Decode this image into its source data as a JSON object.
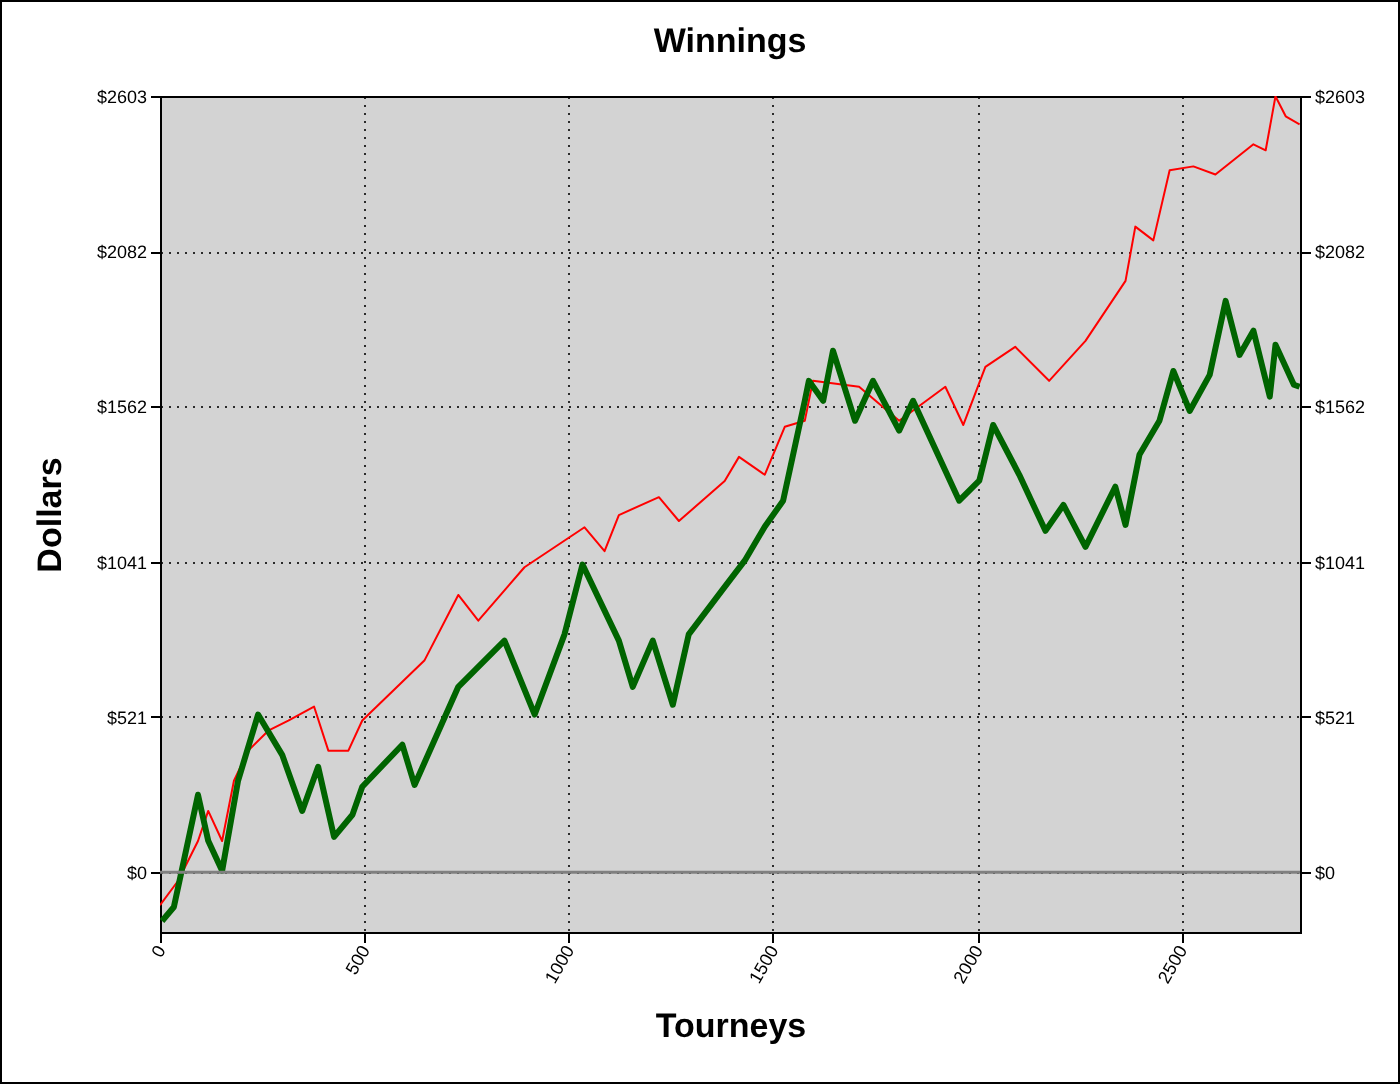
{
  "chart_data": {
    "type": "line",
    "title": "Winnings",
    "xlabel": "Tourneys",
    "ylabel": "Dollars",
    "xlim": [
      0,
      2790
    ],
    "xticks": [
      0,
      500,
      1000,
      1500,
      2000,
      2500
    ],
    "ylim": [
      -200,
      2603
    ],
    "yticks": [
      {
        "value": 0,
        "label": "$0"
      },
      {
        "value": 521,
        "label": "$521"
      },
      {
        "value": 1041,
        "label": "$1041"
      },
      {
        "value": 1562,
        "label": "$1562"
      },
      {
        "value": 2082,
        "label": "$2082"
      },
      {
        "value": 2603,
        "label": "$2603"
      }
    ],
    "y2lim": [
      -200,
      2603
    ],
    "y2ticks": [
      {
        "value": 0,
        "label": "$0"
      },
      {
        "value": 521,
        "label": "$521"
      },
      {
        "value": 1041,
        "label": "$1041"
      },
      {
        "value": 1562,
        "label": "$1562"
      },
      {
        "value": 2082,
        "label": "$2082"
      },
      {
        "value": 2603,
        "label": "$2603"
      }
    ],
    "grid": true,
    "ref_lines": [
      {
        "axis": "y",
        "value": 0,
        "label": null,
        "color": "#808080"
      }
    ],
    "series": [
      {
        "color": "#ff0000",
        "x": [
          0,
          44,
          93,
          118,
          152,
          181,
          216,
          265,
          314,
          377,
          412,
          461,
          495,
          647,
          730,
          779,
          892,
          1039,
          1088,
          1123,
          1221,
          1270,
          1382,
          1417,
          1480,
          1529,
          1578,
          1598,
          1711,
          1809,
          1922,
          1966,
          2020,
          2093,
          2176,
          2265,
          2363,
          2387,
          2431,
          2471,
          2529,
          2583,
          2676,
          2706,
          2730,
          2755,
          2789
        ],
        "values": [
          -110,
          -29,
          105,
          206,
          105,
          307,
          408,
          475,
          509,
          556,
          408,
          408,
          509,
          710,
          930,
          844,
          1023,
          1157,
          1077,
          1198,
          1258,
          1178,
          1312,
          1393,
          1333,
          1494,
          1514,
          1648,
          1628,
          1514,
          1628,
          1500,
          1695,
          1762,
          1648,
          1782,
          1983,
          2165,
          2119,
          2354,
          2367,
          2340,
          2441,
          2421,
          2602,
          2535,
          2508
        ]
      },
      {
        "color": "#006400",
        "x": [
          5,
          34,
          93,
          118,
          152,
          191,
          240,
          299,
          348,
          387,
          426,
          471,
          495,
          593,
          623,
          730,
          843,
          917,
          990,
          1034,
          1123,
          1157,
          1206,
          1255,
          1294,
          1382,
          1431,
          1480,
          1525,
          1578,
          1588,
          1623,
          1647,
          1701,
          1745,
          1809,
          1843,
          1956,
          2005,
          2039,
          2103,
          2167,
          2211,
          2265,
          2338,
          2363,
          2397,
          2446,
          2480,
          2520,
          2569,
          2608,
          2642,
          2676,
          2716,
          2730,
          2775,
          2789
        ],
        "values": [
          -163,
          -116,
          260,
          106,
          5,
          307,
          529,
          394,
          206,
          354,
          119,
          193,
          287,
          428,
          293,
          622,
          777,
          529,
          798,
          1032,
          777,
          622,
          777,
          562,
          798,
          957,
          1045,
          1159,
          1246,
          1581,
          1648,
          1581,
          1749,
          1514,
          1648,
          1481,
          1581,
          1246,
          1313,
          1500,
          1333,
          1145,
          1232,
          1091,
          1293,
          1165,
          1400,
          1514,
          1681,
          1547,
          1668,
          1916,
          1735,
          1816,
          1595,
          1769,
          1635,
          1628
        ]
      }
    ]
  }
}
